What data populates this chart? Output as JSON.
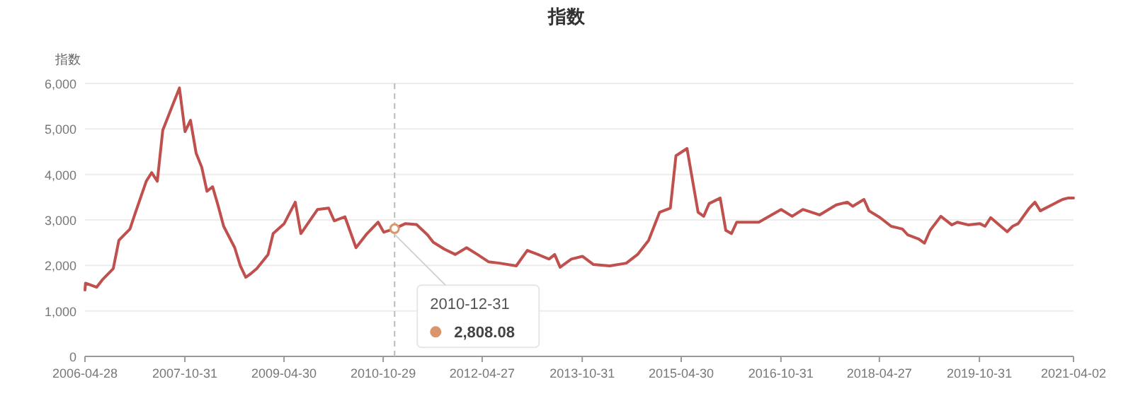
{
  "chart_data": {
    "type": "line",
    "title": "指数",
    "ylabel": "指数",
    "ylim": [
      0,
      6000
    ],
    "yticks": [
      0,
      {
        "value": 1000,
        "label": "1,000"
      },
      {
        "value": 2000,
        "label": "2,000"
      },
      {
        "value": 3000,
        "label": "3,000"
      },
      {
        "value": 4000,
        "label": "4,000"
      },
      {
        "value": 5000,
        "label": "5,000"
      },
      {
        "value": 6000,
        "label": "6,000"
      }
    ],
    "xlim": [
      "2006-04-28",
      "2021-04-02"
    ],
    "xticks": [
      {
        "value": "2006-04-28",
        "label": "2006-04-28"
      },
      {
        "value": "2007-10-31",
        "label": "2007-10-31"
      },
      {
        "value": "2009-04-30",
        "label": "2009-04-30"
      },
      {
        "value": "2010-10-29",
        "label": "2010-10-29"
      },
      {
        "value": "2012-04-27",
        "label": "2012-04-27"
      },
      {
        "value": "2013-10-31",
        "label": "2013-10-31"
      },
      {
        "value": "2015-04-30",
        "label": "2015-04-30"
      },
      {
        "value": "2016-10-31",
        "label": "2016-10-31"
      },
      {
        "value": "2018-04-27",
        "label": "2018-04-27"
      },
      {
        "value": "2019-10-31",
        "label": "2019-10-31"
      },
      {
        "value": "2021-04-02",
        "label": "2021-04-02"
      }
    ],
    "grid": "y",
    "marker": "none",
    "line_style": "solid",
    "series": [
      {
        "color": "#c0504d",
        "x": [
          "2006-04-28",
          "2006-05",
          "2006-07",
          "2006-08",
          "2006-10",
          "2006-11",
          "2007-01",
          "2007-02",
          "2007-04",
          "2007-05",
          "2007-06",
          "2007-07",
          "2007-09",
          "2007-10",
          "2007-11",
          "2007-12",
          "2008-01",
          "2008-02",
          "2008-03",
          "2008-04",
          "2008-05",
          "2008-06",
          "2008-08",
          "2008-09",
          "2008-10",
          "2008-11",
          "2008-12",
          "2009-02",
          "2009-03",
          "2009-05",
          "2009-07",
          "2009-08",
          "2009-11",
          "2010-01",
          "2010-02",
          "2010-04",
          "2010-06",
          "2010-08",
          "2010-10",
          "2010-11",
          "2010-12-31",
          "2011-03",
          "2011-05",
          "2011-07",
          "2011-08",
          "2011-10",
          "2011-12",
          "2012-02",
          "2012-04",
          "2012-06",
          "2012-08",
          "2012-11",
          "2013-01",
          "2013-03",
          "2013-05",
          "2013-06",
          "2013-07",
          "2013-09",
          "2013-11",
          "2014-01",
          "2014-04",
          "2014-07",
          "2014-09",
          "2014-11",
          "2015-01",
          "2015-03",
          "2015-04",
          "2015-06",
          "2015-08",
          "2015-09",
          "2015-10",
          "2015-12",
          "2016-01",
          "2016-02",
          "2016-03",
          "2016-07",
          "2016-11",
          "2017-01",
          "2017-03",
          "2017-06",
          "2017-09",
          "2017-11",
          "2017-12",
          "2018-02",
          "2018-03",
          "2018-05",
          "2018-07",
          "2018-09",
          "2018-10",
          "2018-12",
          "2019-01",
          "2019-02",
          "2019-04",
          "2019-06",
          "2019-07",
          "2019-09",
          "2019-11",
          "2019-12",
          "2020-01",
          "2020-04",
          "2020-05",
          "2020-06",
          "2020-08",
          "2020-09",
          "2020-10",
          "2021-01",
          "2021-02",
          "2021-03",
          "2021-04-02"
        ],
        "values": [
          1460,
          1610,
          1520,
          1680,
          1930,
          2550,
          2800,
          3170,
          3850,
          4040,
          3850,
          4970,
          5600,
          5900,
          4940,
          5190,
          4470,
          4160,
          3630,
          3730,
          3320,
          2860,
          2390,
          1990,
          1740,
          1830,
          1930,
          2240,
          2700,
          2920,
          3390,
          2700,
          3230,
          3260,
          2980,
          3070,
          2390,
          2700,
          2950,
          2730,
          2808.08,
          2920,
          2900,
          2670,
          2510,
          2360,
          2240,
          2390,
          2240,
          2080,
          2050,
          1990,
          2330,
          2240,
          2140,
          2240,
          1960,
          2140,
          2200,
          2020,
          1990,
          2050,
          2240,
          2550,
          3170,
          3260,
          4410,
          4570,
          3170,
          3080,
          3360,
          3480,
          2770,
          2700,
          2950,
          2950,
          3230,
          3080,
          3230,
          3110,
          3330,
          3390,
          3300,
          3450,
          3200,
          3050,
          2860,
          2800,
          2670,
          2580,
          2490,
          2770,
          3080,
          2890,
          2950,
          2890,
          2920,
          2860,
          3050,
          2740,
          2860,
          2920,
          3260,
          3390,
          3200,
          3390,
          3450,
          3480,
          3480
        ]
      }
    ],
    "ref_lines": [
      {
        "axis": "x",
        "value": "2010-12-31",
        "line_style": "dashed",
        "color": "#bbbbbb"
      }
    ],
    "annotations": [
      {
        "text": "2010-12-31\n2,808.08",
        "x": "2010-12-31",
        "y": 2808.08
      }
    ]
  }
}
